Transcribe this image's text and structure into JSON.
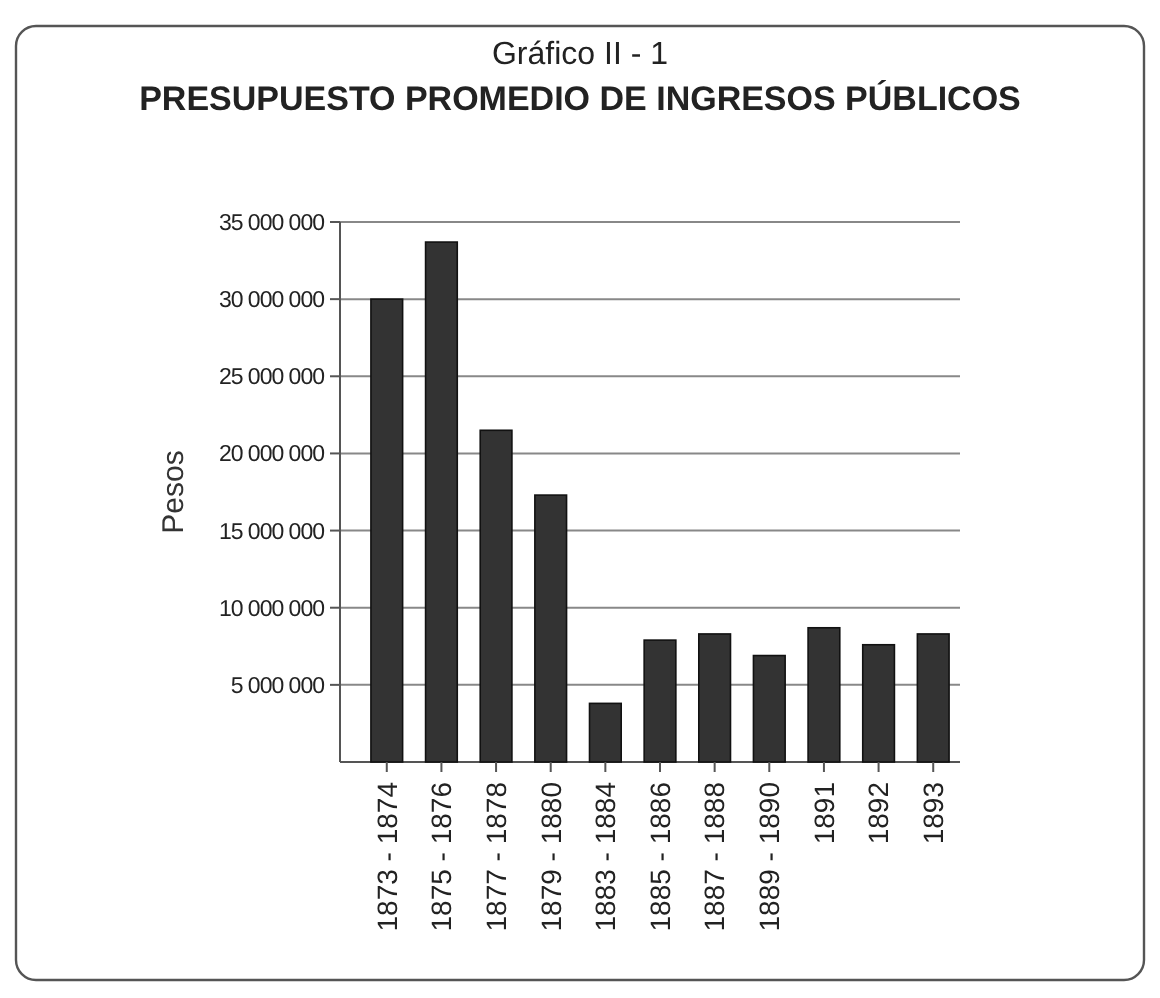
{
  "chart_data": {
    "type": "bar",
    "title": "Gráfico II - 1",
    "subtitle": "PRESUPUESTO PROMEDIO DE INGRESOS PÚBLICOS",
    "ylabel": "Pesos",
    "categories": [
      "1873 - 1874",
      "1875 - 1876",
      "1877 - 1878",
      "1879 - 1880",
      "1883 - 1884",
      "1885 - 1886",
      "1887 - 1888",
      "1889 - 1890",
      "1891",
      "1892",
      "1893"
    ],
    "values": [
      30000000,
      33700000,
      21500000,
      17300000,
      3800000,
      7900000,
      8300000,
      6900000,
      8700000,
      7600000,
      8300000
    ],
    "color": "#333333",
    "ylim": [
      0,
      35000000
    ],
    "yticks": [
      {
        "value": 5000000,
        "label": "5 000 000"
      },
      {
        "value": 10000000,
        "label": "10 000 000"
      },
      {
        "value": 15000000,
        "label": "15 000 000"
      },
      {
        "value": 20000000,
        "label": "20 000 000"
      },
      {
        "value": 25000000,
        "label": "25 000 000"
      },
      {
        "value": 30000000,
        "label": "30 000 000"
      },
      {
        "value": 35000000,
        "label": "35 000 000"
      }
    ],
    "grid": true
  }
}
